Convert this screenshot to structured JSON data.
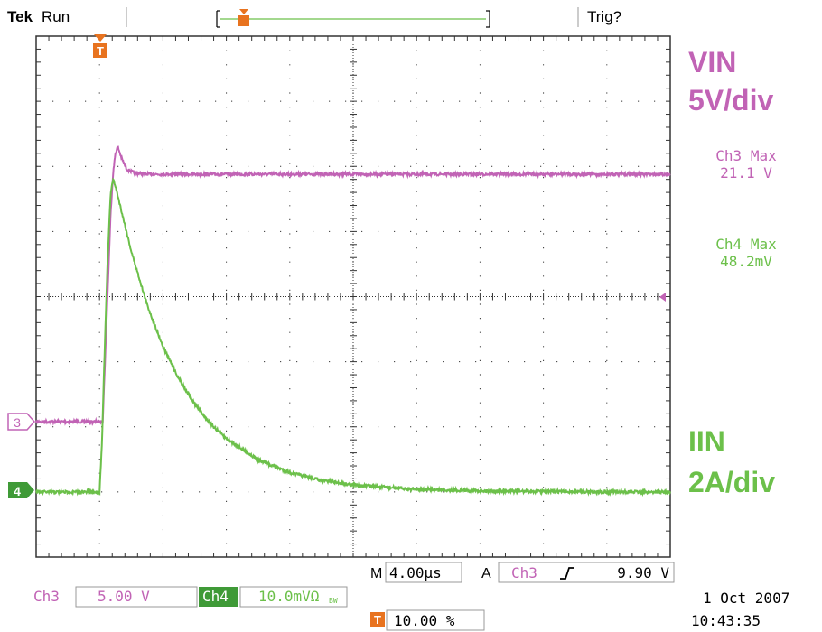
{
  "header": {
    "brand": "Tek",
    "status": "Run",
    "trigger_status": "Trig?"
  },
  "trigger_marker": {
    "label": "T",
    "color": "#e8731f"
  },
  "annotations": {
    "vin_title": "VIN",
    "vin_scale": "5V/div",
    "iin_title": "IIN",
    "iin_scale": "2A/div",
    "ch3_max_label": "Ch3 Max",
    "ch3_max_value": "21.1 V",
    "ch4_max_label": "Ch4 Max",
    "ch4_max_value": "48.2mV"
  },
  "channel_markers": {
    "ch3": "3",
    "ch4": "4"
  },
  "footer": {
    "timebase_prefix": "M",
    "timebase": "4.00µs",
    "trigger_mode": "A",
    "trigger_source": "Ch3",
    "trigger_slope_icon": "rising-edge-icon",
    "trigger_level": "9.90 V",
    "ch3_label": "Ch3",
    "ch3_scale": "5.00 V",
    "ch4_label": "Ch4",
    "ch4_scale": "10.0mVΩ",
    "ch4_suffix": "BW",
    "trigger_pos_label": "T",
    "trigger_position": "10.00 %",
    "date": "1 Oct  2007",
    "time": "10:43:35"
  },
  "colors": {
    "ch3": "#c163b5",
    "ch4": "#6cc04a",
    "ch4_badge": "#3f9a37",
    "trigger": "#e8731f",
    "grid": "#333333"
  },
  "chart_data": {
    "type": "line",
    "x_unit": "µs",
    "x_range": [
      -4,
      36
    ],
    "grid": true,
    "series": [
      {
        "name": "VIN",
        "channel": "Ch3",
        "unit": "V",
        "points": [
          [
            -4,
            0
          ],
          [
            0,
            0
          ],
          [
            0.2,
            0
          ],
          [
            0.45,
            8
          ],
          [
            0.7,
            16
          ],
          [
            0.85,
            19
          ],
          [
            1.0,
            20.6
          ],
          [
            1.15,
            21.1
          ],
          [
            1.4,
            20.2
          ],
          [
            1.7,
            19.4
          ],
          [
            2.2,
            19.1
          ],
          [
            3,
            19
          ],
          [
            10,
            19
          ],
          [
            20,
            19
          ],
          [
            30,
            19
          ],
          [
            36,
            19
          ]
        ]
      },
      {
        "name": "IIN",
        "channel": "Ch4",
        "unit": "A",
        "points": [
          [
            -4,
            0
          ],
          [
            -0.2,
            0
          ],
          [
            0,
            0
          ],
          [
            0.15,
            1.5
          ],
          [
            0.3,
            4
          ],
          [
            0.5,
            7
          ],
          [
            0.7,
            9.2
          ],
          [
            0.85,
            9.6
          ],
          [
            1.0,
            9.4
          ],
          [
            1.5,
            8.4
          ],
          [
            2,
            7.4
          ],
          [
            3,
            5.75
          ],
          [
            4,
            4.47
          ],
          [
            5,
            3.48
          ],
          [
            6,
            2.71
          ],
          [
            7,
            2.1
          ],
          [
            8,
            1.64
          ],
          [
            10,
            0.99
          ],
          [
            12,
            0.6
          ],
          [
            14,
            0.36
          ],
          [
            16,
            0.22
          ],
          [
            20,
            0.08
          ],
          [
            25,
            0.03
          ],
          [
            30,
            0.01
          ],
          [
            36,
            0
          ]
        ]
      }
    ]
  }
}
